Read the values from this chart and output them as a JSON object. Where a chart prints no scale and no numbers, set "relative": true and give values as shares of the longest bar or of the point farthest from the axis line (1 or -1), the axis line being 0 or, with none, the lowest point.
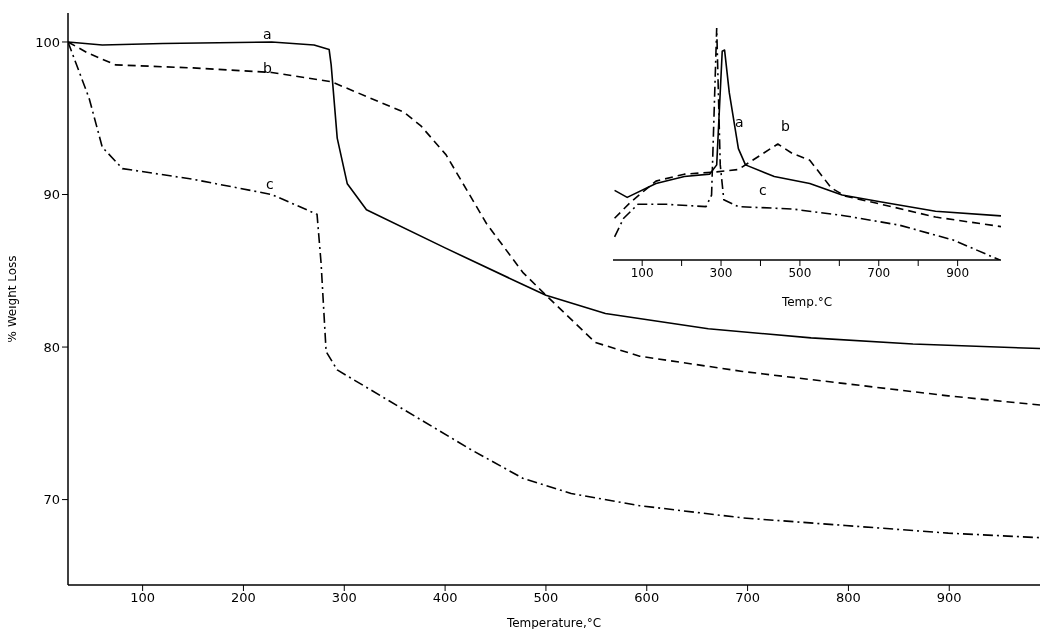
{
  "chart_data": [
    {
      "type": "line",
      "xlabel": "Temperature,°C",
      "ylabel": "% Weight Loss",
      "xlim": [
        26,
        990
      ],
      "ylim": [
        64.4,
        101.9
      ],
      "xticks": [
        100,
        200,
        300,
        400,
        500,
        600,
        700,
        800,
        900
      ],
      "yticks": [
        70,
        80,
        90,
        100
      ],
      "series": [
        {
          "name": "a",
          "color": "#000000",
          "line_style": "solid",
          "x": [
            26,
            60,
            120,
            228,
            270,
            285,
            287,
            293,
            303,
            322,
            400,
            477,
            500,
            559,
            661,
            763,
            864,
            990
          ],
          "values": [
            100,
            99.8,
            99.9,
            100,
            99.8,
            99.5,
            98.5,
            93.7,
            90.7,
            89.0,
            86.5,
            84.1,
            83.4,
            82.2,
            81.2,
            80.6,
            80.2,
            79.9
          ]
        },
        {
          "name": "b",
          "color": "#000000",
          "line_style": "dashed",
          "x": [
            26,
            45,
            73,
            150,
            228,
            287,
            359,
            376,
            401,
            441,
            477,
            500,
            549,
            593,
            695,
            797,
            899,
            990
          ],
          "values": [
            100,
            99.3,
            98.5,
            98.3,
            98.0,
            97.4,
            95.4,
            94.5,
            92.6,
            88.1,
            84.9,
            83.4,
            80.3,
            79.4,
            78.4,
            77.6,
            76.8,
            76.2
          ]
        },
        {
          "name": "c",
          "color": "#000000",
          "line_style": "dashdot",
          "x": [
            26,
            47,
            60,
            80,
            150,
            228,
            273,
            277,
            282,
            293,
            359,
            425,
            477,
            525,
            593,
            695,
            797,
            899,
            990
          ],
          "values": [
            100,
            96.3,
            93.1,
            91.7,
            91.0,
            90.0,
            88.7,
            85.5,
            79.7,
            78.5,
            75.9,
            73.3,
            71.4,
            70.4,
            69.6,
            68.8,
            68.3,
            67.8,
            67.5
          ]
        }
      ]
    },
    {
      "type": "line",
      "xlabel": "Temp.°C",
      "relative": true,
      "xlim": [
        26,
        1010
      ],
      "xticks": [
        100,
        {
          "value": 200,
          "label": null
        },
        300,
        {
          "value": 400,
          "label": null
        },
        500,
        {
          "value": 600,
          "label": null
        },
        700,
        {
          "value": 800,
          "label": null
        },
        900
      ],
      "series": [
        {
          "name": "a",
          "color": "#000000",
          "line_style": "solid",
          "x": [
            30,
            62,
            135,
            207,
            271,
            289,
            303,
            309,
            321,
            344,
            362,
            435,
            525,
            607,
            707,
            844,
            1010
          ],
          "values": [
            0.3,
            0.27,
            0.33,
            0.36,
            0.37,
            0.41,
            0.9,
            0.905,
            0.72,
            0.48,
            0.41,
            0.36,
            0.33,
            0.28,
            0.25,
            0.21,
            0.19
          ]
        },
        {
          "name": "b",
          "color": "#000000",
          "line_style": "dashed",
          "x": [
            30,
            71,
            135,
            207,
            289,
            344,
            380,
            444,
            480,
            525,
            580,
            616,
            707,
            844,
            1010
          ],
          "values": [
            0.18,
            0.25,
            0.34,
            0.37,
            0.38,
            0.39,
            0.43,
            0.5,
            0.46,
            0.43,
            0.31,
            0.275,
            0.24,
            0.185,
            0.144
          ]
        },
        {
          "name": "c",
          "color": "#000000",
          "line_style": "dashdot",
          "x": [
            30,
            53,
            89,
            162,
            262,
            276,
            289,
            298,
            307,
            344,
            480,
            616,
            753,
            889,
            1007
          ],
          "values": [
            0.1,
            0.18,
            0.24,
            0.24,
            0.23,
            0.28,
            1.0,
            0.41,
            0.26,
            0.23,
            0.22,
            0.19,
            0.15,
            0.086,
            0
          ]
        }
      ]
    }
  ]
}
